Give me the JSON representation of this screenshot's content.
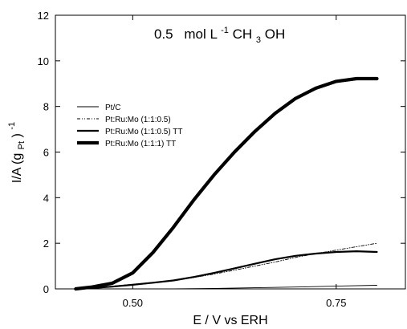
{
  "chart_data": {
    "type": "line",
    "title_parts": {
      "num": "0.5",
      "unit_base": "mol L",
      "unit_sup": "-1",
      "chem_a": "CH",
      "chem_sub": "3",
      "chem_b": "OH"
    },
    "xlabel": "E / V vs ERH",
    "ylabel_parts": {
      "base": "I/A (g",
      "sub": "Pt",
      "close": ")",
      "sup": "-1"
    },
    "xlim": [
      0.405,
      0.835
    ],
    "ylim": [
      0,
      12
    ],
    "xticks": [
      {
        "value": 0.5,
        "label": "0.50"
      },
      {
        "value": 0.75,
        "label": "0.75"
      }
    ],
    "yticks": [
      {
        "value": 0,
        "label": "0"
      },
      {
        "value": 2,
        "label": "2"
      },
      {
        "value": 4,
        "label": "4"
      },
      {
        "value": 6,
        "label": "6"
      },
      {
        "value": 8,
        "label": "8"
      },
      {
        "value": 10,
        "label": "10"
      },
      {
        "value": 12,
        "label": "12"
      }
    ],
    "grid": false,
    "legend_position": "center-left",
    "series": [
      {
        "name": "Pt/C",
        "style": "thin",
        "x": [
          0.43,
          0.5,
          0.55,
          0.6,
          0.65,
          0.7,
          0.75,
          0.8
        ],
        "y": [
          0.0,
          0.0,
          0.0,
          0.02,
          0.05,
          0.08,
          0.12,
          0.16
        ]
      },
      {
        "name": "Pt:Ru:Mo (1:1:0.5)",
        "style": "dashdot",
        "x": [
          0.43,
          0.45,
          0.475,
          0.5,
          0.525,
          0.55,
          0.575,
          0.6,
          0.625,
          0.65,
          0.675,
          0.7,
          0.725,
          0.75,
          0.775,
          0.8
        ],
        "y": [
          0.0,
          0.05,
          0.12,
          0.2,
          0.28,
          0.38,
          0.5,
          0.65,
          0.82,
          1.0,
          1.18,
          1.38,
          1.55,
          1.7,
          1.85,
          2.0
        ]
      },
      {
        "name": "Pt:Ru:Mo (1:1:0.5) TT",
        "style": "medium",
        "x": [
          0.43,
          0.45,
          0.475,
          0.5,
          0.525,
          0.55,
          0.575,
          0.6,
          0.625,
          0.65,
          0.675,
          0.7,
          0.725,
          0.75,
          0.775,
          0.8
        ],
        "y": [
          0.0,
          0.04,
          0.1,
          0.18,
          0.27,
          0.37,
          0.52,
          0.7,
          0.9,
          1.1,
          1.3,
          1.45,
          1.55,
          1.62,
          1.65,
          1.62
        ]
      },
      {
        "name": "Pt:Ru:Mo (1:1:1) TT",
        "style": "thick",
        "x": [
          0.43,
          0.45,
          0.475,
          0.5,
          0.525,
          0.55,
          0.575,
          0.6,
          0.625,
          0.65,
          0.675,
          0.7,
          0.725,
          0.75,
          0.775,
          0.8
        ],
        "y": [
          0.0,
          0.08,
          0.25,
          0.7,
          1.6,
          2.7,
          3.9,
          5.0,
          6.0,
          6.9,
          7.7,
          8.35,
          8.8,
          9.1,
          9.22,
          9.22
        ]
      }
    ]
  }
}
